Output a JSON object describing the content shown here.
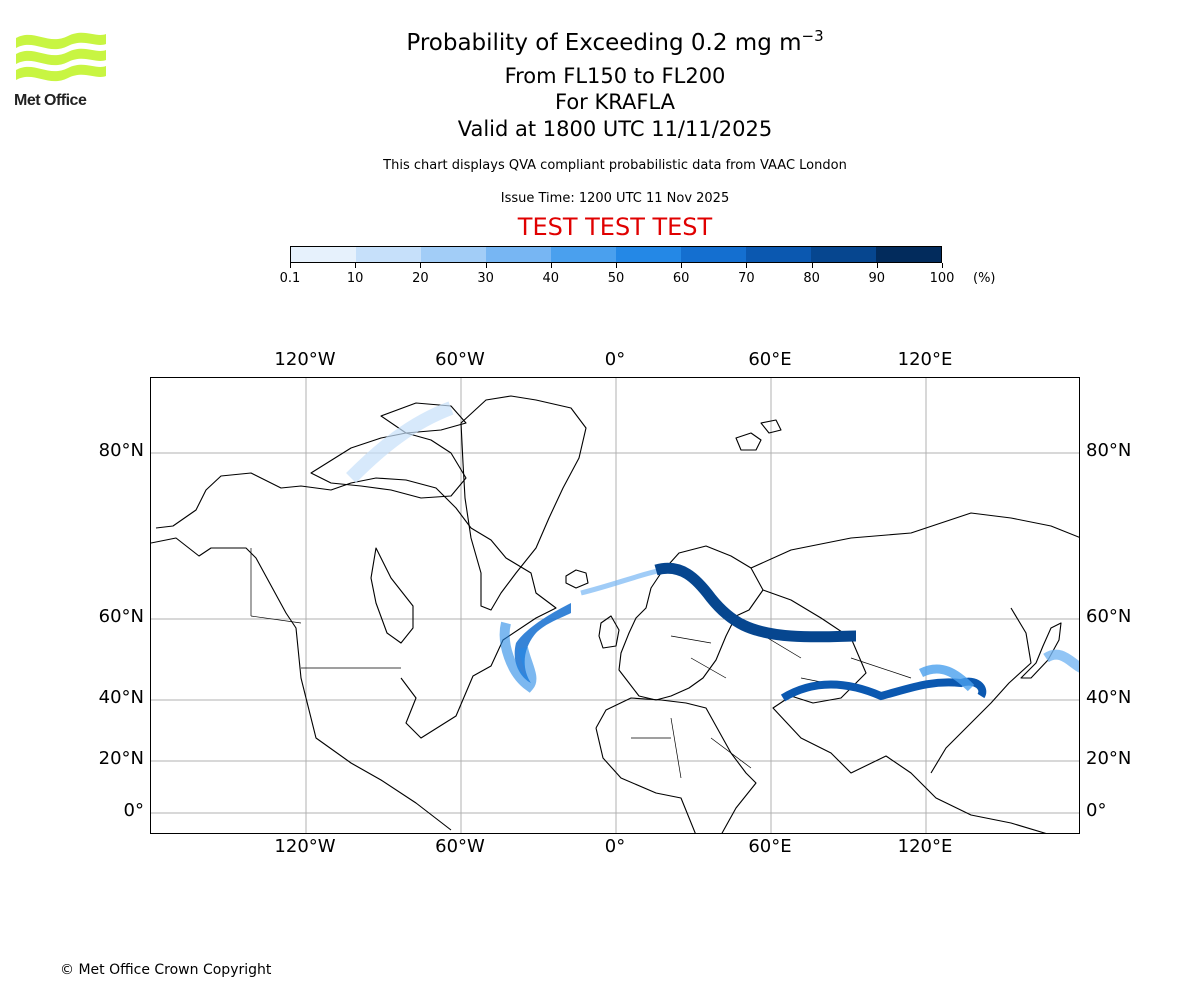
{
  "logo": {
    "text": "Met Office",
    "icon": "met-office-wave-logo",
    "color": "#c8f542"
  },
  "title": {
    "main": "Probability of Exceeding 0.2 mg m",
    "sup": "−3"
  },
  "subtitle": {
    "levels": "From FL150 to FL200",
    "volcano": "For KRAFLA",
    "valid": "Valid at 1800 UTC 11/11/2025"
  },
  "disclaimer": "This chart displays QVA compliant probabilistic data from VAAC London",
  "issue_time": "Issue Time: 1200 UTC 11 Nov 2025",
  "test_banner": "TEST TEST TEST",
  "colorbar": {
    "unit": "(%)",
    "ticks": [
      "0.1",
      "10",
      "20",
      "30",
      "40",
      "50",
      "60",
      "70",
      "80",
      "90",
      "100"
    ],
    "colors": [
      "#e6f1fc",
      "#c6e0fa",
      "#a2cdf7",
      "#77b6f3",
      "#4aa0ee",
      "#2488e6",
      "#146fd0",
      "#0b58b0",
      "#06468f",
      "#022b5c"
    ]
  },
  "map": {
    "lon_ticks": [
      "120°W",
      "60°W",
      "0°",
      "60°E",
      "120°E"
    ],
    "lat_ticks": [
      "80°N",
      "60°N",
      "40°N",
      "20°N",
      "0°"
    ],
    "gridline_color": "#b0b0b0"
  },
  "copyright": "© Met Office Crown Copyright"
}
